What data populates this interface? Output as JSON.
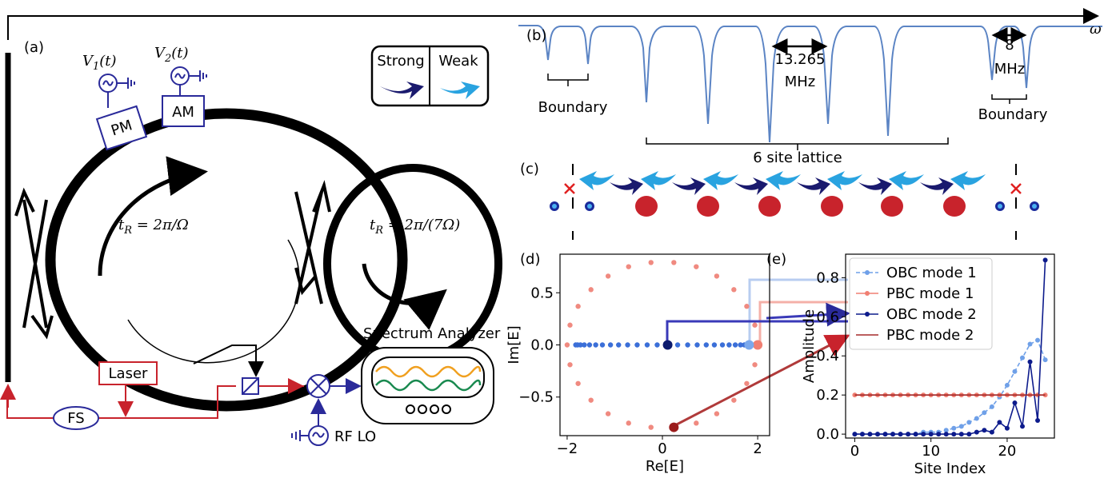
{
  "panel_a": {
    "label": "(a)",
    "v1": {
      "symbol": "V",
      "subscript": "1",
      "arg": "(t)"
    },
    "v2": {
      "symbol": "V",
      "subscript": "2",
      "arg": "(t)"
    },
    "pm": "PM",
    "am": "AM",
    "legend_strong": "Strong",
    "legend_weak": "Weak",
    "ring_large": {
      "symbol": "t",
      "subscript": "R",
      "expr": " = 2π/Ω"
    },
    "ring_small": {
      "symbol": "t",
      "subscript": "R",
      "expr": " = 2π/(7Ω)"
    },
    "laser": "Laser",
    "fs": "FS",
    "spectrum_analyzer": "Spectrum Analyzer",
    "rf_lo": "RF LO"
  },
  "panel_b": {
    "label": "(b)",
    "axis": "ω",
    "spacing_value": "13.265",
    "spacing_unit": "MHz",
    "boundary_spacing_value": "8",
    "boundary_spacing_unit": "MHz",
    "boundary_left": "Boundary",
    "boundary_right": "Boundary",
    "lattice": "6 site lattice"
  },
  "panel_c": {
    "label": "(c)"
  },
  "chart_data": [
    {
      "type": "scatter",
      "label": "(d)",
      "xlabel": "Re[E]",
      "ylabel": "Im[E]",
      "xlim": [
        -2.15,
        2.25
      ],
      "ylim": [
        -0.87,
        0.87
      ],
      "xticks": [
        {
          "value": -2,
          "label": "−2"
        },
        0,
        2
      ],
      "yticks": [
        {
          "value": -0.5,
          "label": "−0.5"
        },
        {
          "value": 0,
          "label": "0.0"
        },
        0.5
      ],
      "series": [
        {
          "color": "#f08a80",
          "x": [
            2,
            1.94,
            1.77,
            1.5,
            1.14,
            0.71,
            0.24,
            -0.24,
            -0.71,
            -1.14,
            -1.5,
            -1.77,
            -1.94,
            -2,
            -1.94,
            -1.77,
            -1.5,
            -1.14,
            -0.71,
            -0.24,
            0.24,
            0.71,
            1.14,
            1.5,
            1.77,
            1.94
          ],
          "y": [
            0,
            0.19,
            0.37,
            0.53,
            0.66,
            0.75,
            0.79,
            0.79,
            0.75,
            0.66,
            0.53,
            0.37,
            0.19,
            0,
            -0.19,
            -0.37,
            -0.53,
            -0.66,
            -0.75,
            -0.79,
            -0.79,
            -0.75,
            -0.66,
            -0.53,
            -0.37,
            -0.19
          ]
        },
        {
          "color": "#3b6fd8",
          "x": [
            1.82,
            1.78,
            1.72,
            1.64,
            1.53,
            1.4,
            1.26,
            1.09,
            0.92,
            0.73,
            0.53,
            0.32,
            0.11,
            -0.11,
            -0.32,
            -0.53,
            -0.73,
            -0.92,
            -1.09,
            -1.26,
            -1.4,
            -1.53,
            -1.64,
            -1.72,
            -1.78,
            -1.82
          ],
          "y": [
            0,
            0,
            0,
            0,
            0,
            0,
            0,
            0,
            0,
            0,
            0,
            0,
            0,
            0,
            0,
            0,
            0,
            0,
            0,
            0,
            0,
            0,
            0,
            0,
            0,
            0
          ]
        },
        {
          "color": "#f07f72",
          "emphasis": true,
          "x": [
            2
          ],
          "y": [
            0
          ]
        },
        {
          "color": "#7aa8ec",
          "emphasis": true,
          "x": [
            1.82
          ],
          "y": [
            0
          ]
        },
        {
          "color": "#0d1b6e",
          "emphasis": true,
          "x": [
            0.11
          ],
          "y": [
            0
          ]
        },
        {
          "color": "#9b1c1c",
          "emphasis": true,
          "x": [
            0.24
          ],
          "y": [
            -0.79
          ]
        }
      ]
    },
    {
      "type": "line",
      "label": "(e)",
      "xlabel": "Site Index",
      "ylabel": "Amplitude",
      "x": [
        0,
        1,
        2,
        3,
        4,
        5,
        6,
        7,
        8,
        9,
        10,
        11,
        12,
        13,
        14,
        15,
        16,
        17,
        18,
        19,
        20,
        21,
        22,
        23,
        24,
        25
      ],
      "xlim": [
        -1.2,
        26.2
      ],
      "ylim": [
        -0.02,
        0.92
      ],
      "xticks": [
        0,
        10,
        20
      ],
      "yticks": [
        {
          "value": 0,
          "label": "0.0"
        },
        0.2,
        0.4,
        0.6,
        0.8
      ],
      "legend": "upper left",
      "series": [
        {
          "name": "OBC mode 1",
          "color": "#6fa0e8",
          "linestyle": "dashed",
          "marker": true,
          "values": [
            0,
            0,
            0,
            0,
            0,
            0,
            0,
            0,
            0,
            0.01,
            0.01,
            0.01,
            0.02,
            0.03,
            0.04,
            0.06,
            0.08,
            0.11,
            0.14,
            0.19,
            0.25,
            0.32,
            0.39,
            0.46,
            0.48,
            0.38
          ]
        },
        {
          "name": "PBC mode 1",
          "color": "#f07f72",
          "linestyle": "solid",
          "marker": true,
          "values": [
            0.2,
            0.2,
            0.2,
            0.2,
            0.2,
            0.2,
            0.2,
            0.2,
            0.2,
            0.2,
            0.2,
            0.2,
            0.2,
            0.2,
            0.2,
            0.2,
            0.2,
            0.2,
            0.2,
            0.2,
            0.2,
            0.2,
            0.2,
            0.2,
            0.2,
            0.2
          ]
        },
        {
          "name": "OBC mode 2",
          "color": "#0d1b8c",
          "linestyle": "solid",
          "marker": true,
          "values": [
            0,
            0,
            0,
            0,
            0,
            0,
            0,
            0,
            0,
            0,
            0,
            0,
            0,
            0,
            0,
            0,
            0.01,
            0.02,
            0.01,
            0.06,
            0.03,
            0.16,
            0.04,
            0.37,
            0.07,
            0.89
          ]
        },
        {
          "name": "PBC mode 2",
          "color": "#a52a2a",
          "linestyle": "solid",
          "marker": false,
          "values": [
            0.2,
            0.2,
            0.2,
            0.2,
            0.2,
            0.2,
            0.2,
            0.2,
            0.2,
            0.2,
            0.2,
            0.2,
            0.2,
            0.2,
            0.2,
            0.2,
            0.2,
            0.2,
            0.2,
            0.2,
            0.2,
            0.2,
            0.2,
            0.2,
            0.2,
            0.2
          ]
        }
      ]
    }
  ]
}
